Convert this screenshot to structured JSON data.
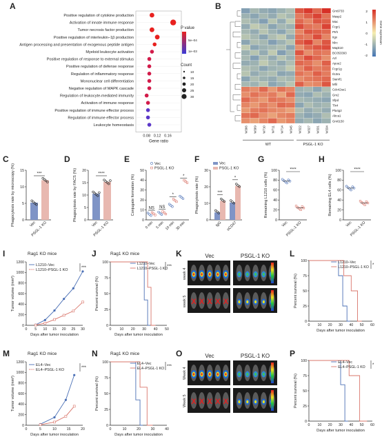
{
  "panels": {
    "A": {
      "label": "A",
      "terms": [
        "Positive regulation of cytokine production",
        "Activation of innate immune response",
        "Tumor necrosis factor production",
        "Positive regulation of interleukin–1β production",
        "Antigen processing and presentation of exogenous peptide antigen",
        "Myeloid leukocyte activation",
        "Positive regulation of response to external stimulus",
        "Positive regulation of defense response",
        "Regulation of inflammatory response",
        "Mononuclear cell differentiation",
        "Negative regulation of MAPK cascade",
        "Regulation of leukocyte-mediated immunity",
        "Activation of immune response",
        "Positive regulation of immune effector process",
        "Regulation of immune effector process",
        "Leukocyte homeostasis"
      ],
      "gene_ratio": [
        0.1,
        0.18,
        0.1,
        0.12,
        0.11,
        0.1,
        0.09,
        0.09,
        0.09,
        0.09,
        0.09,
        0.08,
        0.085,
        0.085,
        0.085,
        0.09
      ],
      "xlabel": "Gene ratio",
      "xticks": [
        "0.08",
        "0.12",
        "0.16"
      ],
      "legend_p_title": "P value",
      "legend_p_ticks": [
        "5e–04",
        "1e–03"
      ],
      "legend_count_title": "Count",
      "legend_counts": [
        "10",
        "15",
        "20",
        "25",
        "30"
      ]
    },
    "B": {
      "label": "B",
      "genes": [
        "Gm9733",
        "Masp2",
        "Mac",
        "Fcgr1",
        "Ptrh",
        "Itgx",
        "Nlrc",
        "Mapk10",
        "BC053393",
        "Azl",
        "Apoe2",
        "Fcgr1g",
        "Il13ra",
        "Siamf1",
        "Mfil",
        "Cdc42se1",
        "Gm2",
        "Sfpd",
        "Tlx4",
        "Pla4g2",
        "Abca1",
        "Gm6150"
      ],
      "samples": [
        "W306",
        "W309",
        "W710",
        "W711",
        "W714",
        "W345",
        "W322",
        "W327",
        "W331",
        "W334"
      ],
      "group_wt": "WT",
      "group_ko": "PSGL-1 KO",
      "scale_title": "Gene expression",
      "scale_ticks": [
        "2",
        "1",
        "0",
        "-1",
        "-2"
      ],
      "grid": [
        [
          -1.3,
          -0.9,
          -1.1,
          -1.2,
          -1.0,
          -0.8,
          1.6,
          1.9,
          1.4,
          2.0
        ],
        [
          -1.0,
          -1.2,
          -0.9,
          -1.1,
          -0.7,
          -0.9,
          1.2,
          1.5,
          1.8,
          1.3
        ],
        [
          -0.8,
          -1.0,
          -1.3,
          -0.7,
          -1.1,
          -0.6,
          1.4,
          1.1,
          1.6,
          1.5
        ],
        [
          -1.1,
          -0.6,
          -0.8,
          -1.2,
          -0.9,
          -1.0,
          1.7,
          1.3,
          1.2,
          1.8
        ],
        [
          -0.9,
          -1.1,
          -0.7,
          -1.0,
          -1.2,
          -0.8,
          1.1,
          1.6,
          1.5,
          1.4
        ],
        [
          -0.7,
          -0.9,
          -1.2,
          -0.8,
          -0.6,
          -1.1,
          1.3,
          1.2,
          1.7,
          1.1
        ],
        [
          -1.2,
          -0.8,
          -0.9,
          -1.3,
          -1.0,
          -0.7,
          1.5,
          1.8,
          1.1,
          1.6
        ],
        [
          -0.6,
          -1.2,
          -1.0,
          -0.9,
          -0.8,
          -1.2,
          1.0,
          1.4,
          1.6,
          1.7
        ],
        [
          -1.0,
          -0.7,
          -1.1,
          -0.6,
          -1.3,
          -0.9,
          1.6,
          1.0,
          1.3,
          1.2
        ],
        [
          -0.9,
          -1.3,
          -0.8,
          -1.1,
          -0.7,
          -1.0,
          1.2,
          1.7,
          1.4,
          1.0
        ],
        [
          -1.1,
          -1.0,
          -0.6,
          -0.9,
          -1.1,
          -0.8,
          1.4,
          1.3,
          1.0,
          1.5
        ],
        [
          -0.8,
          -0.9,
          -1.2,
          -1.0,
          -0.9,
          -0.6,
          1.1,
          1.5,
          1.2,
          1.3
        ],
        [
          -0.7,
          -1.1,
          -0.9,
          -0.8,
          -1.2,
          -1.1,
          1.3,
          1.1,
          1.5,
          1.2
        ],
        [
          -1.2,
          -0.8,
          -1.0,
          -1.1,
          -0.8,
          -0.9,
          1.0,
          1.2,
          1.3,
          1.4
        ],
        [
          -0.9,
          -1.0,
          -0.7,
          -1.2,
          -1.0,
          -0.7,
          1.5,
          1.0,
          1.1,
          1.6
        ],
        [
          1.2,
          1.0,
          1.4,
          0.9,
          1.3,
          1.1,
          -1.0,
          -0.9,
          -1.2,
          -0.8
        ],
        [
          1.0,
          1.3,
          1.1,
          1.2,
          0.8,
          1.4,
          -1.1,
          -1.2,
          -0.8,
          -1.0
        ],
        [
          1.4,
          1.1,
          0.9,
          1.3,
          1.2,
          1.0,
          -0.9,
          -1.0,
          -1.1,
          -1.2
        ],
        [
          1.1,
          0.9,
          1.2,
          1.0,
          1.4,
          1.3,
          -1.2,
          -0.8,
          -1.0,
          -0.9
        ],
        [
          0.9,
          1.2,
          1.3,
          1.1,
          1.0,
          0.8,
          -0.8,
          -1.1,
          -0.9,
          -1.1
        ],
        [
          1.3,
          1.4,
          1.0,
          0.8,
          1.1,
          1.2,
          -1.0,
          -1.2,
          -1.1,
          -0.8
        ],
        [
          1.0,
          0.8,
          1.1,
          1.4,
          0.9,
          1.1,
          -1.1,
          -0.9,
          -1.2,
          -1.0
        ]
      ]
    },
    "C": {
      "label": "C",
      "ylabel": "Phagocytosis rate by microscopy (%)",
      "categories": [
        "Vec",
        "PSGL-1 KO"
      ],
      "values": [
        5.2,
        12.0
      ],
      "yticks": [
        "0",
        "5",
        "10",
        "15"
      ],
      "ymax": 15,
      "sig": "***"
    },
    "D": {
      "label": "D",
      "ylabel": "Phagocytosis rate by FACS (%)",
      "categories": [
        "Vec",
        "PSGL-1 KO"
      ],
      "values": [
        10.5,
        15.3
      ],
      "yticks": [
        "0",
        "5",
        "10",
        "15",
        "20"
      ],
      "ymax": 20,
      "sig": "****"
    },
    "E": {
      "label": "E",
      "ylabel": "Conjugate formation (%)",
      "categories": [
        "0 min",
        "5 min",
        "10 min",
        "30 min"
      ],
      "legend": [
        "Vec",
        "PSGL-1 KO"
      ],
      "vec": [
        5.0,
        6.0,
        14.0,
        22.0
      ],
      "ko": [
        5.5,
        6.5,
        19.0,
        38.0
      ],
      "yticks": [
        "0",
        "10",
        "20",
        "30",
        "40",
        "50"
      ],
      "ymax": 50,
      "sig": [
        "NS",
        "NS",
        "*",
        "*"
      ]
    },
    "F": {
      "label": "F",
      "ylabel": "Phagocytosis rate (%)",
      "categories": [
        "IgG",
        "αCD47"
      ],
      "legend": [
        "Vec",
        "PSGL-1 KO"
      ],
      "vec": [
        4.5,
        10.5
      ],
      "ko": [
        11.5,
        20.5
      ],
      "yticks": [
        "0",
        "10",
        "20",
        "30"
      ],
      "ymax": 30,
      "sig": [
        "***",
        "*"
      ]
    },
    "G": {
      "label": "G",
      "ylabel": "Remaining L1210 cells (%)",
      "categories": [
        "Vec",
        "PSGL-1 KO"
      ],
      "values": [
        78,
        24
      ],
      "yticks": [
        "0",
        "20",
        "40",
        "60",
        "80",
        "100"
      ],
      "ymax": 100,
      "sig": "****"
    },
    "H": {
      "label": "H",
      "ylabel": "Remaining EL4 cells (%)",
      "categories": [
        "Vec",
        "PSGL-1 KO"
      ],
      "values": [
        64,
        34
      ],
      "yticks": [
        "0",
        "20",
        "40",
        "60",
        "80",
        "100"
      ],
      "ymax": 100,
      "sig": "****"
    },
    "I": {
      "label": "I",
      "title": "Rag1 KO mice",
      "ylabel": "Tumor volume (mm³)",
      "xlabel": "Days after tumor inoculation",
      "legend": [
        "L1210–Vec",
        "L1210–PSGL-1 KO"
      ],
      "x": [
        5,
        10,
        15,
        20,
        25,
        30
      ],
      "vec": [
        10,
        100,
        280,
        500,
        700,
        1020
      ],
      "ko": [
        5,
        40,
        110,
        190,
        270,
        440
      ],
      "yticks": [
        "0",
        "200",
        "400",
        "600",
        "800",
        "1000",
        "1200"
      ],
      "xticks": [
        "0",
        "5",
        "10",
        "15",
        "20",
        "25",
        "30"
      ],
      "ymax": 1200,
      "xmax": 30,
      "sig": "***"
    },
    "J": {
      "label": "J",
      "title": "Rag1 KO mice",
      "ylabel": "Percent survival (%)",
      "xlabel": "Days after tumor inoculation",
      "legend": [
        "L1210–Vec",
        "L1210–PSGL-1 KO"
      ],
      "vec_x": [
        0,
        30,
        30,
        33,
        33,
        35
      ],
      "vec_y": [
        100,
        100,
        40,
        40,
        0,
        0
      ],
      "ko_x": [
        0,
        33,
        33,
        36,
        36,
        40
      ],
      "ko_y": [
        100,
        100,
        60,
        60,
        0,
        0
      ],
      "yticks": [
        "0",
        "25",
        "50",
        "75",
        "100"
      ],
      "xticks": [
        "0",
        "10",
        "20",
        "30",
        "40",
        "50"
      ],
      "xmax": 50,
      "sig": "***"
    },
    "K": {
      "label": "K",
      "groups": [
        "Vec",
        "PSGL-1 KO"
      ],
      "weeks": [
        "week 4",
        "week 5"
      ]
    },
    "L": {
      "label": "L",
      "ylabel": "Percent survival (%)",
      "xlabel": "Days after tumor inoculation",
      "legend": [
        "L1210–Vec",
        "L1210–PSGL-1 KO"
      ],
      "vec_x": [
        0,
        28,
        28,
        32,
        32,
        36,
        36,
        39
      ],
      "vec_y": [
        100,
        100,
        75,
        75,
        25,
        25,
        0,
        0
      ],
      "ko_x": [
        0,
        33,
        33,
        40,
        40,
        46,
        46,
        50
      ],
      "ko_y": [
        100,
        100,
        75,
        75,
        50,
        50,
        0,
        0
      ],
      "yticks": [
        "0",
        "25",
        "50",
        "75",
        "100"
      ],
      "xticks": [
        "0",
        "10",
        "20",
        "30",
        "40",
        "50",
        "60"
      ],
      "xmax": 60,
      "sig": "*"
    },
    "M": {
      "label": "M",
      "title": "Rag1 KO mice",
      "ylabel": "Tumor volume (mm³)",
      "xlabel": "Days after tumor inoculation",
      "legend": [
        "EL4–Vec",
        "EL4–PSGL-1 KO"
      ],
      "x": [
        5,
        10,
        14,
        17
      ],
      "vec": [
        20,
        150,
        480,
        950
      ],
      "ko": [
        10,
        60,
        170,
        360
      ],
      "yticks": [
        "0",
        "200",
        "400",
        "600",
        "800",
        "1000",
        "1200"
      ],
      "xticks": [
        "0",
        "5",
        "10",
        "15",
        "20"
      ],
      "ymax": 1200,
      "xmax": 20,
      "sig": "***"
    },
    "N": {
      "label": "N",
      "title": "Rag1 KO mice",
      "ylabel": "Percent survival (%)",
      "xlabel": "Days after tumor inoculation",
      "legend": [
        "EL4–Vec",
        "EL4–PSGL-1 KO"
      ],
      "vec_x": [
        0,
        18,
        18,
        21,
        21,
        23
      ],
      "vec_y": [
        100,
        100,
        40,
        40,
        0,
        0
      ],
      "ko_x": [
        0,
        21,
        21,
        26,
        26,
        30
      ],
      "ko_y": [
        100,
        100,
        60,
        60,
        0,
        0
      ],
      "yticks": [
        "0",
        "25",
        "50",
        "75",
        "100"
      ],
      "xticks": [
        "0",
        "10",
        "20",
        "30",
        "40"
      ],
      "xmax": 40,
      "sig": "***"
    },
    "O": {
      "label": "O",
      "groups": [
        "Vec",
        "PSGL-1 KO"
      ],
      "weeks": [
        "Week 4",
        "Week 5"
      ]
    },
    "P": {
      "label": "P",
      "ylabel": "Percent survival (%)",
      "xlabel": "Days after tumor inoculation",
      "legend": [
        "EL4–Vec",
        "EL4–PSGL-1 KO"
      ],
      "vec_x": [
        0,
        30,
        30,
        34,
        34,
        37
      ],
      "vec_y": [
        100,
        100,
        60,
        60,
        0,
        0
      ],
      "ko_x": [
        0,
        38,
        38,
        48,
        48,
        55
      ],
      "ko_y": [
        100,
        100,
        75,
        75,
        0,
        0
      ],
      "yticks": [
        "0",
        "25",
        "50",
        "75",
        "100"
      ],
      "xticks": [
        "0",
        "10",
        "20",
        "30",
        "40",
        "50",
        "60"
      ],
      "xmax": 60,
      "sig": "*"
    }
  },
  "colors": {
    "vec": "#4a6fb5",
    "ko": "#d9756a",
    "vec_fill": "#7f94c6",
    "ko_fill": "#e8b8b0"
  }
}
